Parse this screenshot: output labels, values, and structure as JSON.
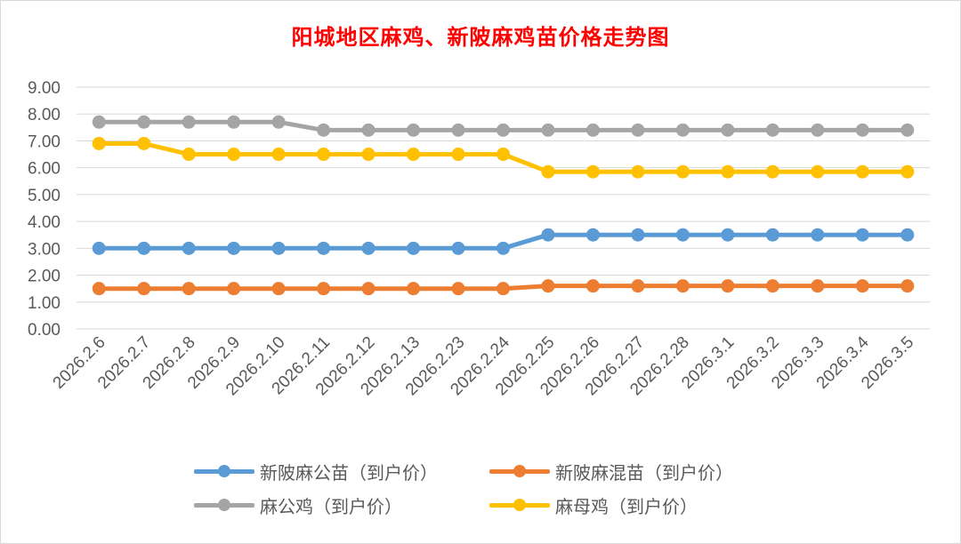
{
  "chart_data": {
    "type": "line",
    "title": "阳城地区麻鸡、新陂麻鸡苗价格走势图",
    "categories": [
      "2026.2.6",
      "2026.2.7",
      "2026.2.8",
      "2026.2.9",
      "2026.2.10",
      "2026.2.11",
      "2026.2.12",
      "2026.2.13",
      "2026.2.23",
      "2026.2.24",
      "2026.2.25",
      "2026.2.26",
      "2026.2.27",
      "2026.2.28",
      "2026.3.1",
      "2026.3.2",
      "2026.3.3",
      "2026.3.4",
      "2026.3.5"
    ],
    "ylim": [
      0,
      9
    ],
    "yticks": [
      "0.00",
      "1.00",
      "2.00",
      "3.00",
      "4.00",
      "5.00",
      "6.00",
      "7.00",
      "8.00",
      "9.00"
    ],
    "grid": true,
    "legend_position": "bottom",
    "series": [
      {
        "name": "新陂麻公苗（到户价）",
        "color": "#5b9bd5",
        "values": [
          3.0,
          3.0,
          3.0,
          3.0,
          3.0,
          3.0,
          3.0,
          3.0,
          3.0,
          3.0,
          3.5,
          3.5,
          3.5,
          3.5,
          3.5,
          3.5,
          3.5,
          3.5,
          3.5
        ]
      },
      {
        "name": "新陂麻混苗（到户价）",
        "color": "#ed7d31",
        "values": [
          1.5,
          1.5,
          1.5,
          1.5,
          1.5,
          1.5,
          1.5,
          1.5,
          1.5,
          1.5,
          1.6,
          1.6,
          1.6,
          1.6,
          1.6,
          1.6,
          1.6,
          1.6,
          1.6
        ]
      },
      {
        "name": "麻公鸡（到户价）",
        "color": "#a5a5a5",
        "values": [
          7.7,
          7.7,
          7.7,
          7.7,
          7.7,
          7.4,
          7.4,
          7.4,
          7.4,
          7.4,
          7.4,
          7.4,
          7.4,
          7.4,
          7.4,
          7.4,
          7.4,
          7.4,
          7.4
        ]
      },
      {
        "name": "麻母鸡（到户价）",
        "color": "#ffc000",
        "values": [
          6.9,
          6.9,
          6.5,
          6.5,
          6.5,
          6.5,
          6.5,
          6.5,
          6.5,
          6.5,
          5.85,
          5.85,
          5.85,
          5.85,
          5.85,
          5.85,
          5.85,
          5.85,
          5.85
        ]
      }
    ]
  }
}
